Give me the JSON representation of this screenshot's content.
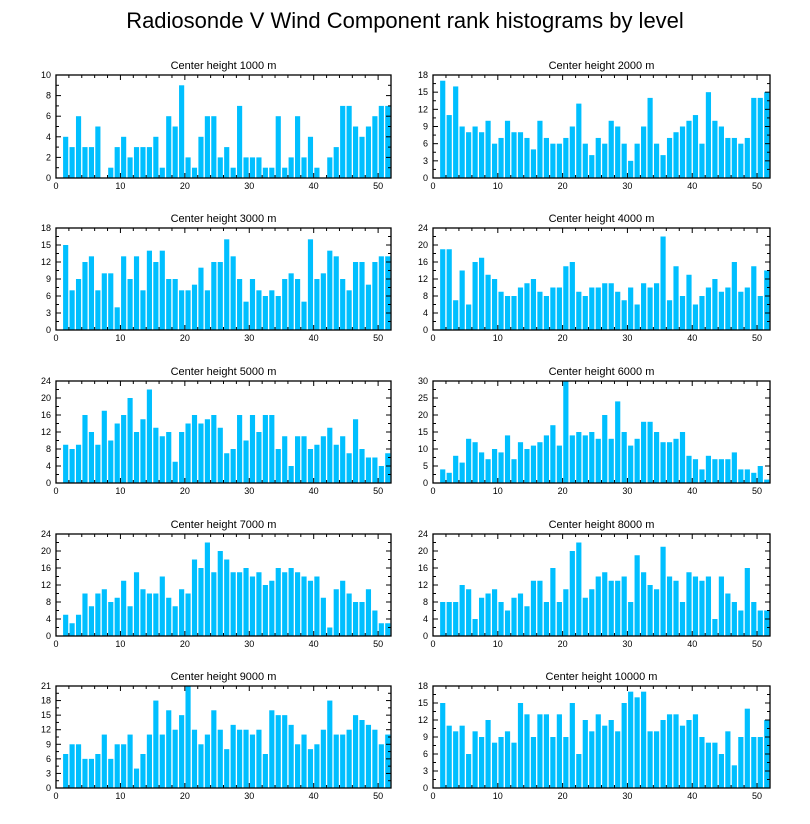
{
  "title": "Radiosonde V Wind Component rank histograms by level",
  "colors": {
    "bar": "#00BFFF",
    "frame": "#000000",
    "background": "#FFFFFF"
  },
  "chart_data": [
    {
      "type": "bar",
      "title": "Center height 1000 m",
      "ylim": [
        0,
        10
      ],
      "yticks": [
        0,
        2,
        4,
        6,
        8,
        10
      ],
      "xlim": [
        0,
        52
      ],
      "xticks": [
        0,
        10,
        20,
        30,
        40,
        50
      ],
      "values": [
        0,
        4,
        3,
        6,
        3,
        3,
        5,
        0,
        1,
        3,
        4,
        2,
        3,
        3,
        3,
        4,
        1,
        6,
        5,
        9,
        2,
        1,
        4,
        6,
        6,
        2,
        3,
        1,
        7,
        2,
        2,
        2,
        1,
        1,
        6,
        1,
        2,
        6,
        2,
        4,
        1,
        0,
        2,
        3,
        7,
        7,
        5,
        4,
        5,
        6,
        7,
        7
      ]
    },
    {
      "type": "bar",
      "title": "Center height 2000 m",
      "ylim": [
        0,
        18
      ],
      "yticks": [
        0,
        3,
        6,
        9,
        12,
        15,
        18
      ],
      "xlim": [
        0,
        52
      ],
      "xticks": [
        0,
        10,
        20,
        30,
        40,
        50
      ],
      "values": [
        0,
        17,
        11,
        16,
        9,
        8,
        9,
        8,
        10,
        6,
        7,
        10,
        8,
        8,
        7,
        5,
        10,
        7,
        6,
        6,
        7,
        9,
        13,
        6,
        4,
        7,
        6,
        10,
        9,
        6,
        3,
        6,
        9,
        14,
        6,
        4,
        7,
        8,
        9,
        10,
        11,
        6,
        15,
        10,
        9,
        7,
        7,
        6,
        7,
        14,
        14,
        15
      ]
    },
    {
      "type": "bar",
      "title": "Center height 3000 m",
      "ylim": [
        0,
        18
      ],
      "yticks": [
        0,
        3,
        6,
        9,
        12,
        15,
        18
      ],
      "xlim": [
        0,
        52
      ],
      "xticks": [
        0,
        10,
        20,
        30,
        40,
        50
      ],
      "values": [
        0,
        15,
        7,
        9,
        12,
        13,
        7,
        10,
        10,
        4,
        13,
        9,
        13,
        7,
        14,
        12,
        14,
        9,
        9,
        7,
        7,
        8,
        11,
        7,
        12,
        12,
        16,
        13,
        9,
        5,
        9,
        7,
        6,
        7,
        6,
        9,
        10,
        9,
        5,
        16,
        9,
        10,
        14,
        13,
        9,
        7,
        12,
        12,
        8,
        12,
        13,
        13
      ]
    },
    {
      "type": "bar",
      "title": "Center height 4000 m",
      "ylim": [
        0,
        24
      ],
      "yticks": [
        0,
        4,
        8,
        12,
        16,
        20,
        24
      ],
      "xlim": [
        0,
        52
      ],
      "xticks": [
        0,
        10,
        20,
        30,
        40,
        50
      ],
      "values": [
        0,
        19,
        19,
        7,
        14,
        6,
        16,
        17,
        13,
        12,
        9,
        8,
        8,
        10,
        11,
        12,
        9,
        8,
        10,
        10,
        15,
        16,
        9,
        8,
        10,
        10,
        11,
        11,
        9,
        7,
        10,
        6,
        11,
        10,
        11,
        22,
        7,
        15,
        8,
        13,
        6,
        8,
        10,
        12,
        9,
        10,
        16,
        9,
        10,
        15,
        8,
        14
      ]
    },
    {
      "type": "bar",
      "title": "Center height 5000 m",
      "ylim": [
        0,
        24
      ],
      "yticks": [
        0,
        4,
        8,
        12,
        16,
        20,
        24
      ],
      "xlim": [
        0,
        52
      ],
      "xticks": [
        0,
        10,
        20,
        30,
        40,
        50
      ],
      "values": [
        0,
        9,
        8,
        9,
        16,
        12,
        9,
        17,
        10,
        14,
        16,
        20,
        12,
        15,
        22,
        13,
        11,
        12,
        5,
        12,
        14,
        16,
        14,
        15,
        16,
        13,
        7,
        8,
        16,
        10,
        16,
        12,
        16,
        16,
        8,
        11,
        4,
        11,
        11,
        8,
        9,
        11,
        13,
        9,
        11,
        7,
        15,
        8,
        6,
        6,
        4,
        7
      ]
    },
    {
      "type": "bar",
      "title": "Center height 6000 m",
      "ylim": [
        0,
        30
      ],
      "yticks": [
        0,
        5,
        10,
        15,
        20,
        25,
        30
      ],
      "xlim": [
        0,
        52
      ],
      "xticks": [
        0,
        10,
        20,
        30,
        40,
        50
      ],
      "values": [
        0,
        4,
        3,
        8,
        6,
        13,
        12,
        9,
        7,
        10,
        9,
        14,
        7,
        12,
        10,
        11,
        12,
        14,
        17,
        11,
        30,
        14,
        15,
        14,
        15,
        13,
        20,
        13,
        24,
        15,
        11,
        13,
        18,
        18,
        15,
        12,
        12,
        13,
        15,
        8,
        7,
        4,
        8,
        7,
        7,
        7,
        9,
        4,
        4,
        3,
        5,
        1
      ]
    },
    {
      "type": "bar",
      "title": "Center height 7000 m",
      "ylim": [
        0,
        24
      ],
      "yticks": [
        0,
        4,
        8,
        12,
        16,
        20,
        24
      ],
      "xlim": [
        0,
        52
      ],
      "xticks": [
        0,
        10,
        20,
        30,
        40,
        50
      ],
      "values": [
        0,
        5,
        3,
        5,
        10,
        7,
        10,
        11,
        8,
        9,
        13,
        7,
        15,
        11,
        10,
        10,
        14,
        9,
        7,
        11,
        10,
        18,
        16,
        22,
        15,
        20,
        18,
        15,
        15,
        16,
        14,
        15,
        12,
        13,
        16,
        15,
        16,
        15,
        14,
        13,
        14,
        9,
        2,
        11,
        13,
        10,
        8,
        8,
        11,
        6,
        3,
        3
      ]
    },
    {
      "type": "bar",
      "title": "Center height 8000 m",
      "ylim": [
        0,
        24
      ],
      "yticks": [
        0,
        4,
        8,
        12,
        16,
        20,
        24
      ],
      "xlim": [
        0,
        52
      ],
      "xticks": [
        0,
        10,
        20,
        30,
        40,
        50
      ],
      "values": [
        0,
        8,
        8,
        8,
        12,
        11,
        4,
        9,
        10,
        11,
        8,
        6,
        9,
        10,
        7,
        13,
        13,
        8,
        16,
        8,
        11,
        20,
        22,
        9,
        11,
        14,
        15,
        13,
        13,
        14,
        8,
        19,
        15,
        12,
        11,
        21,
        14,
        13,
        8,
        15,
        14,
        13,
        14,
        4,
        14,
        10,
        8,
        6,
        16,
        8,
        6,
        6
      ]
    },
    {
      "type": "bar",
      "title": "Center height 9000 m",
      "ylim": [
        0,
        21
      ],
      "yticks": [
        0,
        3,
        6,
        9,
        12,
        15,
        18,
        21
      ],
      "xlim": [
        0,
        52
      ],
      "xticks": [
        0,
        10,
        20,
        30,
        40,
        50
      ],
      "values": [
        0,
        7,
        9,
        9,
        6,
        6,
        7,
        11,
        6,
        9,
        9,
        11,
        4,
        7,
        11,
        18,
        11,
        16,
        12,
        15,
        21,
        12,
        9,
        11,
        16,
        12,
        8,
        13,
        12,
        12,
        11,
        12,
        7,
        16,
        15,
        15,
        13,
        9,
        11,
        8,
        9,
        12,
        18,
        11,
        11,
        12,
        15,
        14,
        13,
        12,
        9,
        11
      ]
    },
    {
      "type": "bar",
      "title": "Center height 10000 m",
      "ylim": [
        0,
        18
      ],
      "yticks": [
        0,
        3,
        6,
        9,
        12,
        15,
        18
      ],
      "xlim": [
        0,
        52
      ],
      "xticks": [
        0,
        10,
        20,
        30,
        40,
        50
      ],
      "values": [
        0,
        15,
        11,
        10,
        11,
        6,
        10,
        9,
        12,
        8,
        9,
        10,
        8,
        15,
        13,
        9,
        13,
        13,
        9,
        13,
        9,
        15,
        6,
        12,
        10,
        13,
        11,
        12,
        10,
        15,
        17,
        16,
        17,
        10,
        10,
        12,
        13,
        13,
        11,
        12,
        13,
        9,
        8,
        8,
        6,
        10,
        4,
        9,
        14,
        9,
        9,
        12
      ]
    }
  ]
}
